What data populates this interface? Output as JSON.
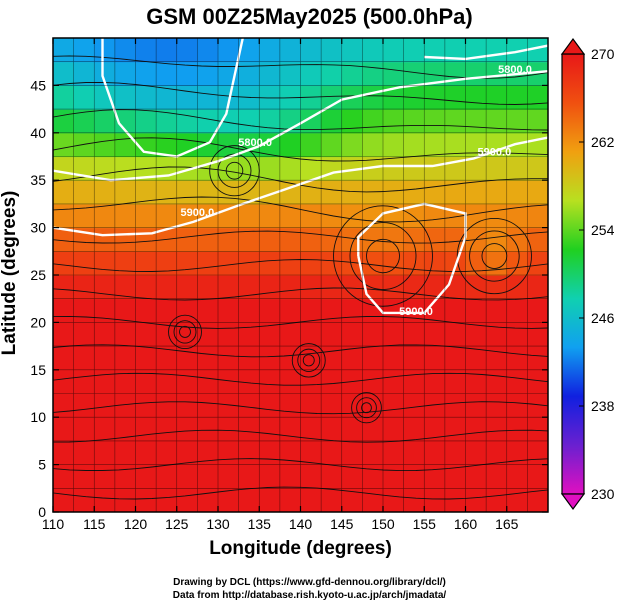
{
  "chart_data": {
    "type": "heatmap",
    "title": "GSM 00Z25May2025 (500.0hPa)",
    "xlabel": "Longitude (degrees)",
    "ylabel": "Latitude  (degrees)",
    "xlim": [
      110,
      170
    ],
    "ylim": [
      0,
      50
    ],
    "xticks": [
      110,
      115,
      120,
      125,
      130,
      135,
      140,
      145,
      150,
      155,
      160,
      165
    ],
    "yticks": [
      0,
      5,
      10,
      15,
      20,
      25,
      30,
      35,
      40,
      45
    ],
    "grid": true,
    "colorbar": {
      "min": 230,
      "max": 270,
      "ticks": [
        230,
        238,
        246,
        254,
        262,
        270
      ],
      "stops": [
        "#e010c0",
        "#6a20d0",
        "#1020e0",
        "#10a0f0",
        "#10d0b0",
        "#20d020",
        "#b8e020",
        "#f0a010",
        "#f05010",
        "#e81818"
      ]
    },
    "contour_labels": [
      {
        "text": "5900.0",
        "lon": 127.5,
        "lat": 31.2
      },
      {
        "text": "5900.0",
        "lon": 163.5,
        "lat": 37.6
      },
      {
        "text": "5900.0",
        "lon": 154,
        "lat": 20.8
      },
      {
        "text": "5800.0",
        "lon": 134.5,
        "lat": 38.6
      },
      {
        "text": "5800.0",
        "lon": 166,
        "lat": 46.3
      }
    ],
    "temperature_field_note": "approximate 500hPa temperature (K): ~270 south of 20N, ~262 near 33N, ~254 near 42N, ~248 at 45N/125E"
  },
  "credits": {
    "line1": "Drawing by DCL (https://www.gfd-dennou.org/library/dcl/)",
    "line2": "Data from http://database.rish.kyoto-u.ac.jp/arch/jmadata/"
  }
}
